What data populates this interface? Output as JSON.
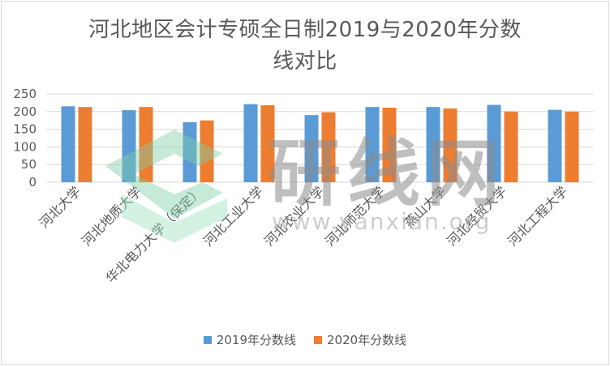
{
  "chart_data": {
    "type": "bar",
    "title_lines": [
      "河北地区会计专硕全日制2019与2020年分数",
      "线对比"
    ],
    "categories": [
      "河北大学",
      "河北地质大学",
      "华北电力大学（保定）",
      "河北工业大学",
      "河北农业大学",
      "河北师范大学",
      "燕山大学",
      "河北经贸大学",
      "河北工程大学"
    ],
    "series": [
      {
        "name": "2019年分数线",
        "color": "#5b9bd5",
        "values": [
          215,
          204,
          170,
          221,
          190,
          213,
          213,
          219,
          205
        ]
      },
      {
        "name": "2020年分数线",
        "color": "#ed7d31",
        "values": [
          213,
          213,
          175,
          218,
          198,
          211,
          209,
          200,
          200
        ]
      }
    ],
    "ylim": [
      0,
      250
    ],
    "yticks": [
      "0",
      "50",
      "100",
      "150",
      "200",
      "250"
    ],
    "grid": true,
    "legend": "bottom"
  },
  "watermark": {
    "text": "研线网",
    "url": "www.yanxian.org"
  }
}
